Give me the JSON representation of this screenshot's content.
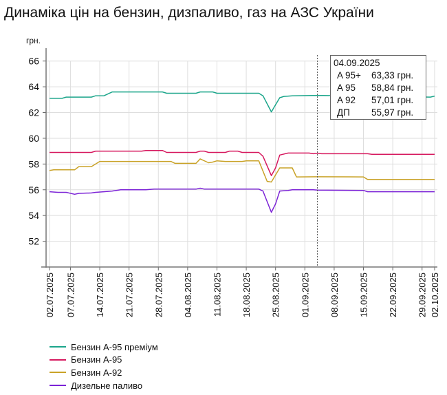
{
  "title": "Динаміка цін на бензин, дизпаливо, газ на АЗС України",
  "chart_data": {
    "type": "line",
    "title": "Динаміка цін на бензин, дизпаливо, газ на АЗС України",
    "ylabel": "грн.",
    "ylim": [
      50,
      66
    ],
    "yticks": [
      "52",
      "54",
      "56",
      "58",
      "60",
      "62",
      "64",
      "66"
    ],
    "xrange": [
      "02.07.2025",
      "02.10.2025"
    ],
    "xticks": [
      "02.07.2025",
      "07.07.2025",
      "14.07.2025",
      "21.07.2025",
      "28.07.2025",
      "04.08.2025",
      "11.08.2025",
      "18.08.2025",
      "25.08.2025",
      "01.09.2025",
      "08.09.2025",
      "15.09.2025",
      "22.09.2025",
      "29.09.2025",
      "02.10.2025"
    ],
    "grid": true,
    "legend_position": "bottom-left",
    "series": [
      {
        "name": "Бензин А-95 преміум",
        "color": "#1aa58a",
        "points": [
          [
            "02.07.2025",
            63.1
          ],
          [
            "05.07.2025",
            63.1
          ],
          [
            "06.07.2025",
            63.2
          ],
          [
            "12.07.2025",
            63.2
          ],
          [
            "13.07.2025",
            63.3
          ],
          [
            "15.07.2025",
            63.3
          ],
          [
            "17.07.2025",
            63.6
          ],
          [
            "29.07.2025",
            63.6
          ],
          [
            "30.07.2025",
            63.5
          ],
          [
            "06.08.2025",
            63.5
          ],
          [
            "07.08.2025",
            63.6
          ],
          [
            "10.08.2025",
            63.6
          ],
          [
            "11.08.2025",
            63.5
          ],
          [
            "21.08.2025",
            63.5
          ],
          [
            "22.08.2025",
            63.3
          ],
          [
            "24.08.2025",
            62.05
          ],
          [
            "25.08.2025",
            62.6
          ],
          [
            "26.08.2025",
            63.15
          ],
          [
            "27.08.2025",
            63.25
          ],
          [
            "29.08.2025",
            63.3
          ],
          [
            "04.09.2025",
            63.33
          ],
          [
            "01.10.2025",
            63.2
          ],
          [
            "02.10.2025",
            63.28
          ]
        ]
      },
      {
        "name": "Бензин А-95",
        "color": "#d6185e",
        "points": [
          [
            "02.07.2025",
            58.9
          ],
          [
            "12.07.2025",
            58.9
          ],
          [
            "13.07.2025",
            59.0
          ],
          [
            "24.07.2025",
            59.0
          ],
          [
            "25.07.2025",
            59.05
          ],
          [
            "29.07.2025",
            59.05
          ],
          [
            "30.07.2025",
            58.9
          ],
          [
            "06.08.2025",
            58.9
          ],
          [
            "07.08.2025",
            59.0
          ],
          [
            "08.08.2025",
            59.0
          ],
          [
            "09.08.2025",
            58.9
          ],
          [
            "13.08.2025",
            58.9
          ],
          [
            "14.08.2025",
            59.0
          ],
          [
            "16.08.2025",
            59.0
          ],
          [
            "17.08.2025",
            58.9
          ],
          [
            "21.08.2025",
            58.9
          ],
          [
            "22.08.2025",
            58.6
          ],
          [
            "24.08.2025",
            57.1
          ],
          [
            "25.08.2025",
            57.7
          ],
          [
            "26.08.2025",
            58.7
          ],
          [
            "28.08.2025",
            58.85
          ],
          [
            "02.09.2025",
            58.85
          ],
          [
            "03.09.2025",
            58.8
          ],
          [
            "04.09.2025",
            58.84
          ],
          [
            "05.09.2025",
            58.8
          ],
          [
            "16.09.2025",
            58.8
          ],
          [
            "17.09.2025",
            58.75
          ],
          [
            "02.10.2025",
            58.75
          ]
        ]
      },
      {
        "name": "Бензин А-92",
        "color": "#c9a227",
        "points": [
          [
            "02.07.2025",
            57.5
          ],
          [
            "03.07.2025",
            57.55
          ],
          [
            "08.07.2025",
            57.55
          ],
          [
            "09.07.2025",
            57.8
          ],
          [
            "12.07.2025",
            57.8
          ],
          [
            "14.07.2025",
            58.2
          ],
          [
            "31.07.2025",
            58.2
          ],
          [
            "01.08.2025",
            58.05
          ],
          [
            "06.08.2025",
            58.05
          ],
          [
            "07.08.2025",
            58.4
          ],
          [
            "09.08.2025",
            58.1
          ],
          [
            "10.08.2025",
            58.15
          ],
          [
            "11.08.2025",
            58.25
          ],
          [
            "13.08.2025",
            58.2
          ],
          [
            "17.08.2025",
            58.2
          ],
          [
            "18.08.2025",
            58.25
          ],
          [
            "21.08.2025",
            58.25
          ],
          [
            "23.08.2025",
            56.65
          ],
          [
            "24.08.2025",
            56.6
          ],
          [
            "26.08.2025",
            57.7
          ],
          [
            "29.08.2025",
            57.7
          ],
          [
            "30.08.2025",
            57.0
          ],
          [
            "04.09.2025",
            57.01
          ],
          [
            "15.09.2025",
            57.0
          ],
          [
            "16.09.2025",
            56.8
          ],
          [
            "02.10.2025",
            56.8
          ]
        ]
      },
      {
        "name": "Дизельне паливо",
        "color": "#7b22d6",
        "points": [
          [
            "02.07.2025",
            55.85
          ],
          [
            "04.07.2025",
            55.8
          ],
          [
            "06.07.2025",
            55.8
          ],
          [
            "08.07.2025",
            55.65
          ],
          [
            "09.07.2025",
            55.72
          ],
          [
            "12.07.2025",
            55.75
          ],
          [
            "13.07.2025",
            55.8
          ],
          [
            "15.07.2025",
            55.85
          ],
          [
            "17.07.2025",
            55.9
          ],
          [
            "19.07.2025",
            56.0
          ],
          [
            "25.07.2025",
            56.0
          ],
          [
            "27.07.2025",
            56.05
          ],
          [
            "06.08.2025",
            56.05
          ],
          [
            "07.08.2025",
            56.12
          ],
          [
            "08.08.2025",
            56.05
          ],
          [
            "21.08.2025",
            56.05
          ],
          [
            "22.08.2025",
            55.9
          ],
          [
            "24.08.2025",
            54.25
          ],
          [
            "25.08.2025",
            54.9
          ],
          [
            "26.08.2025",
            55.9
          ],
          [
            "28.08.2025",
            55.95
          ],
          [
            "29.08.2025",
            56.0
          ],
          [
            "03.09.2025",
            56.0
          ],
          [
            "04.09.2025",
            55.97
          ],
          [
            "15.09.2025",
            55.95
          ],
          [
            "16.09.2025",
            55.85
          ],
          [
            "02.10.2025",
            55.85
          ]
        ]
      }
    ],
    "tooltip": {
      "date": "04.09.2025",
      "rows": [
        {
          "label": "A 95+",
          "value": "63,33 грн."
        },
        {
          "label": "A 95",
          "value": "58,84 грн."
        },
        {
          "label": "A 92",
          "value": "57,01 грн."
        },
        {
          "label": "ДП",
          "value": "55,97 грн."
        }
      ]
    }
  }
}
